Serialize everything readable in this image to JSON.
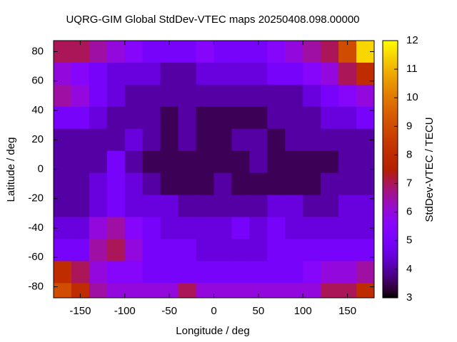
{
  "chart_data": {
    "type": "heatmap",
    "title": "UQRG-GIM Global StdDev-VTEC maps 20250408.098.00000",
    "x_label": "Longitude / deg",
    "y_label": "Latitude / deg",
    "colorbar_label": "StdDev-VTEC / TECU",
    "colormap": "gnuplot",
    "xbins": [
      -180,
      -160,
      -140,
      -120,
      -100,
      -80,
      -60,
      -40,
      -20,
      0,
      20,
      40,
      60,
      80,
      100,
      120,
      140,
      160,
      180
    ],
    "ybins": [
      87.5,
      72.5,
      57.5,
      42.5,
      27.5,
      12.5,
      -2.5,
      -17.5,
      -32.5,
      -47.5,
      -62.5,
      -77.5,
      -87.5
    ],
    "values": [
      [
        7,
        7,
        6.5,
        6,
        5.5,
        5,
        5,
        5,
        5.5,
        5,
        5,
        5,
        5.5,
        6,
        6.5,
        7,
        9,
        11.5
      ],
      [
        6,
        5.5,
        5,
        4.5,
        4.5,
        4.5,
        4,
        4,
        4.5,
        4.5,
        4.5,
        4.5,
        5,
        5,
        5.5,
        6,
        7,
        8
      ],
      [
        6.5,
        6,
        5,
        4.5,
        4,
        4,
        4,
        4,
        4,
        4,
        4,
        4,
        4,
        4,
        4.5,
        5,
        5.5,
        6
      ],
      [
        5,
        5,
        4.5,
        4,
        4,
        4,
        3.5,
        4,
        3.5,
        3.5,
        3.5,
        3.5,
        4,
        4,
        4,
        4.5,
        4.5,
        5
      ],
      [
        4,
        4,
        4,
        4,
        4.5,
        4,
        3.5,
        4,
        3.5,
        3.5,
        4,
        4,
        3.5,
        4,
        4,
        4,
        4,
        4
      ],
      [
        4,
        4,
        4,
        5,
        4,
        3.5,
        3.5,
        3.5,
        3.5,
        3.5,
        3.5,
        4,
        3.5,
        3.5,
        3.5,
        3.5,
        4,
        4
      ],
      [
        4,
        4,
        4.5,
        5,
        4.5,
        4,
        3.5,
        3.5,
        3.5,
        4,
        3.5,
        3.5,
        3.5,
        3.5,
        3.5,
        4,
        4,
        4
      ],
      [
        4,
        4,
        4.5,
        5,
        4.5,
        4.5,
        4.5,
        4,
        4,
        4,
        4,
        4,
        4.5,
        4.5,
        4,
        4,
        4.5,
        4.5
      ],
      [
        4.5,
        4.5,
        6,
        6.5,
        5.5,
        5,
        4.5,
        4.5,
        4.5,
        4.5,
        5,
        4.5,
        5,
        4.5,
        4.5,
        4.5,
        4.5,
        4.5
      ],
      [
        5,
        5,
        6.5,
        7,
        6,
        5,
        5,
        5,
        4.5,
        4.5,
        4.5,
        4.5,
        5,
        5,
        5,
        5,
        5,
        5
      ],
      [
        8,
        7,
        6,
        5.5,
        5.5,
        5,
        5,
        5,
        5,
        5,
        5,
        5,
        5,
        5,
        5.5,
        6,
        6,
        6.5
      ],
      [
        9,
        8,
        6.5,
        6,
        6,
        6,
        6,
        7,
        6,
        6,
        6,
        6,
        6,
        6,
        6,
        7,
        7,
        8
      ]
    ],
    "xlim": [
      -180,
      180
    ],
    "ylim": [
      -87.5,
      87.5
    ],
    "xticks": [
      -150,
      -100,
      -50,
      0,
      50,
      100,
      150
    ],
    "yticks": [
      -80,
      -60,
      -40,
      -20,
      0,
      20,
      40,
      60,
      80
    ],
    "clim": [
      3,
      12
    ],
    "cticks": [
      3,
      4,
      5,
      6,
      7,
      8,
      9,
      10,
      11,
      12
    ]
  }
}
